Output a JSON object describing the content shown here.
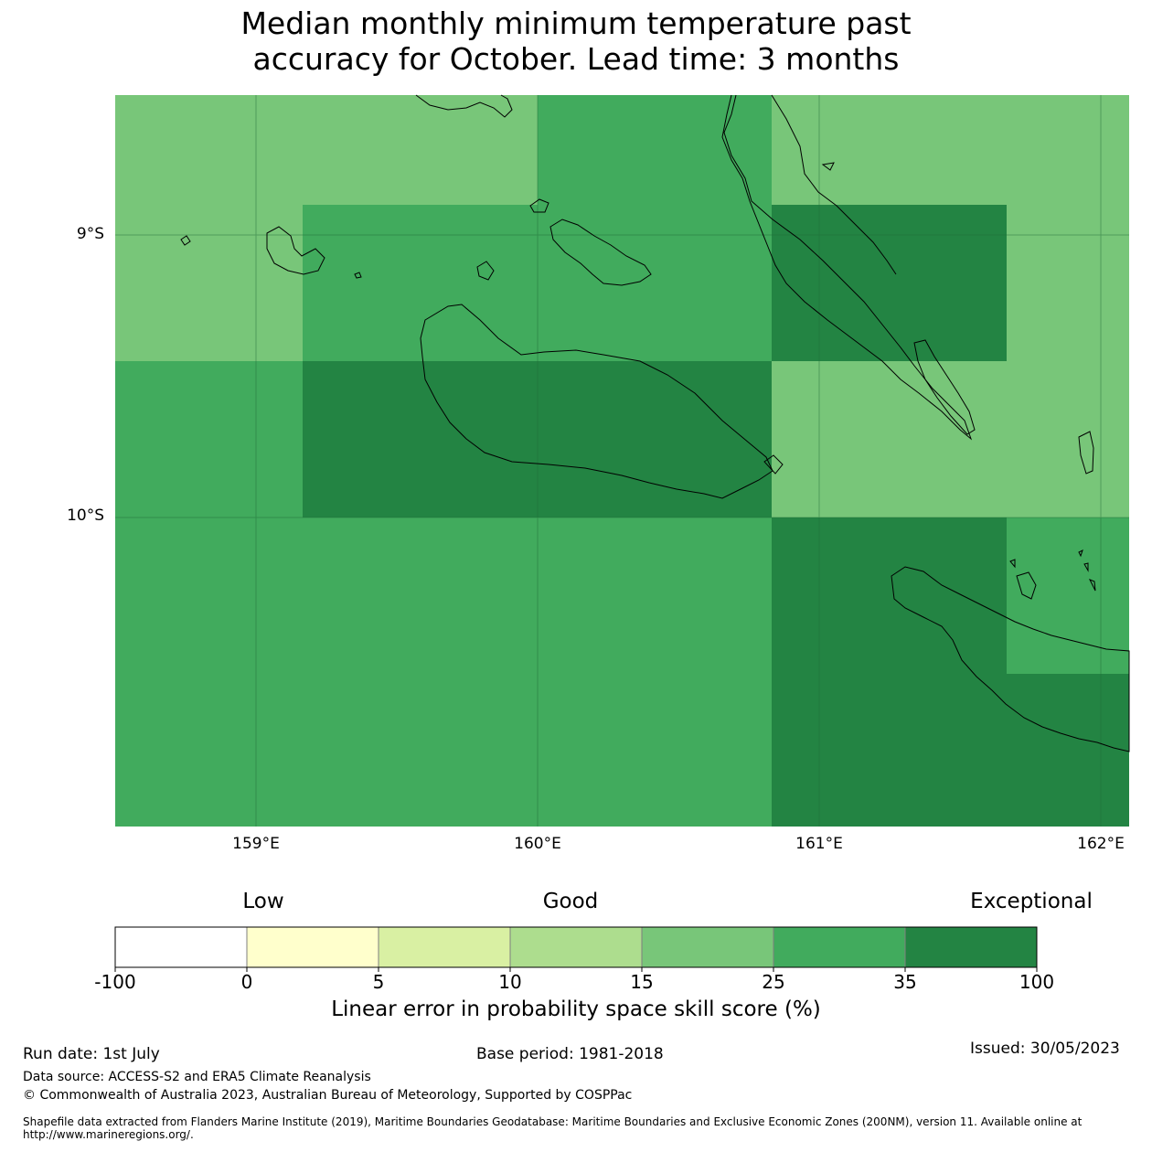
{
  "title": {
    "line1": "Median monthly minimum temperature past",
    "line2": "accuracy for October. Lead time: 3 months"
  },
  "map": {
    "lat_labels": [
      "9°S",
      "10°S"
    ],
    "lon_labels": [
      "159°E",
      "160°E",
      "161°E",
      "162°E"
    ],
    "cells": [
      {
        "skill_class": "15-25",
        "color": "#78c679"
      },
      {
        "skill_class": "25-35",
        "color": "#41ab5d"
      },
      {
        "skill_class": "35-100",
        "color": "#238443"
      }
    ]
  },
  "legend": {
    "qualitative": [
      "Low",
      "Good",
      "Exceptional"
    ],
    "ticks": [
      "-100",
      "0",
      "5",
      "10",
      "15",
      "25",
      "35",
      "100"
    ],
    "colors": [
      "#ffffff",
      "#ffffcc",
      "#d9f0a3",
      "#addd8e",
      "#78c679",
      "#41ab5d",
      "#238443"
    ],
    "caption": "Linear error in probability space skill score (%)"
  },
  "footer": {
    "run_date": "Run date: 1st July",
    "base_period": "Base period: 1981-2018",
    "issued": "Issued: 30/05/2023",
    "data_source": "Data source: ACCESS-S2 and ERA5 Climate Reanalysis",
    "copyright": "© Commonwealth of Australia 2023, Australian Bureau of Meteorology, Supported by COSPPac",
    "shapefile_line1": "Shapefile data extracted from Flanders Marine Institute (2019), Maritime Boundaries Geodatabase: Maritime Boundaries and Exclusive Economic Zones (200NM), version 11. Available online at",
    "shapefile_line2": "http://www.marineregions.org/."
  }
}
